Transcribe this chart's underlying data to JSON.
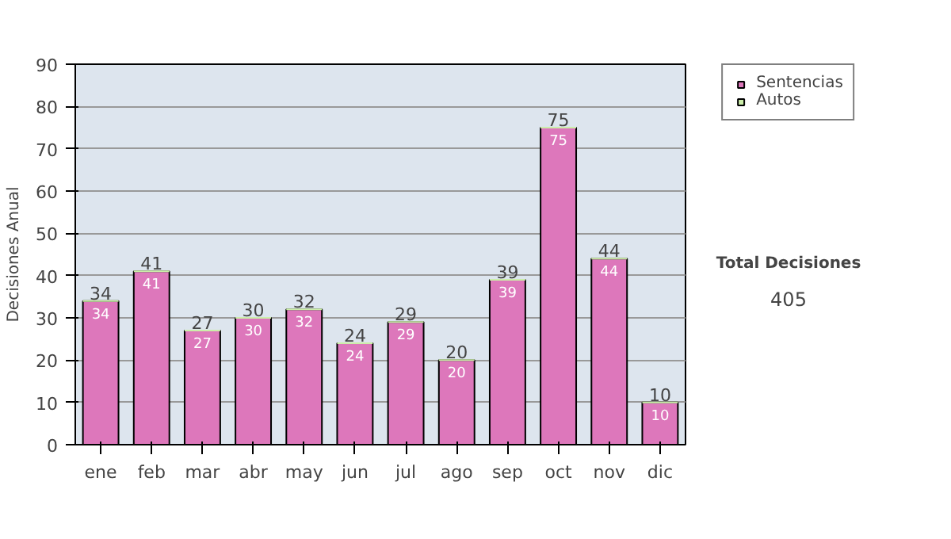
{
  "chart_data": {
    "type": "bar",
    "stacked": true,
    "ylabel": "Decisiones Anual",
    "categories": [
      "ene",
      "feb",
      "mar",
      "abr",
      "may",
      "jun",
      "jul",
      "ago",
      "sep",
      "oct",
      "nov",
      "dic"
    ],
    "series": [
      {
        "name": "Sentencias",
        "color": "#dd77bb",
        "values": [
          34,
          41,
          27,
          30,
          32,
          24,
          29,
          20,
          39,
          75,
          44,
          10
        ],
        "value_labels": [
          "34",
          "41",
          "27",
          "30",
          "32",
          "24",
          "29",
          "20",
          "39",
          "75",
          "44",
          "10"
        ]
      },
      {
        "name": "Autos",
        "color": "#cceeaa",
        "values": [
          0,
          0,
          0,
          0,
          0,
          0,
          0,
          0,
          0,
          0,
          0,
          0
        ]
      }
    ],
    "totals": [
      "34",
      "41",
      "27",
      "30",
      "32",
      "24",
      "29",
      "20",
      "39",
      "75",
      "44",
      "10"
    ],
    "ylim": [
      0,
      90
    ],
    "yticks": [
      0,
      10,
      20,
      30,
      40,
      50,
      60,
      70,
      80,
      90
    ],
    "grid": "y",
    "legend": "right",
    "annotations": [
      "Total Decisiones",
      "405"
    ]
  }
}
